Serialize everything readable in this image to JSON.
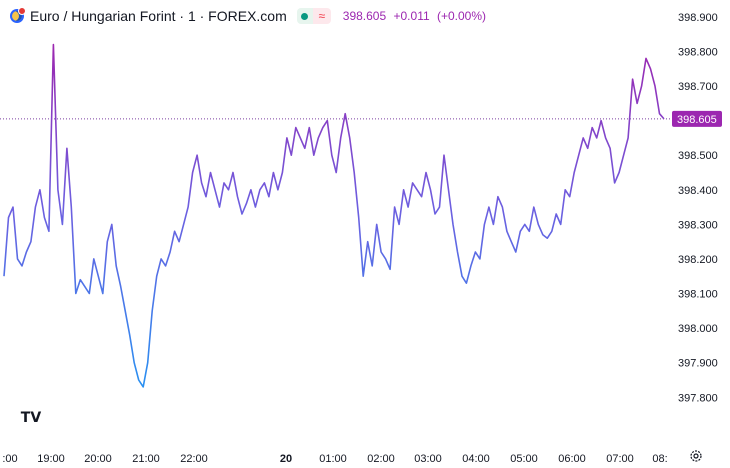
{
  "legend": {
    "title": "Euro / Hungarian Forint · 1 · FOREX.com",
    "last": "398.605",
    "change": "+0.011",
    "change_pct": "(+0.00%)",
    "icons": [
      "currency-pair-icon",
      "market-open-icon",
      "wave-icon"
    ]
  },
  "colors": {
    "line_start": "#2196f3",
    "line_end": "#9c27b0",
    "price_label_bg": "#9c27b0",
    "axis_text": "#131722"
  },
  "footer": {
    "logo_text": "TV",
    "settings_icon": "gear-icon"
  },
  "chart_data": {
    "type": "line",
    "title": "Euro / Hungarian Forint · 1 · FOREX.com",
    "xlabel": "",
    "ylabel": "",
    "ylim": [
      397.74,
      398.92
    ],
    "x_ticks": [
      ":00",
      "19:00",
      "20:00",
      "21:00",
      "22:00",
      "20",
      "01:00",
      "02:00",
      "03:00",
      "04:00",
      "05:00",
      "06:00",
      "07:00",
      "08:"
    ],
    "y_ticks": [
      "398.900",
      "398.800",
      "398.700",
      "398.600",
      "398.500",
      "398.400",
      "398.300",
      "398.200",
      "398.100",
      "398.000",
      "397.900",
      "397.800"
    ],
    "last_price": 398.605,
    "last_price_label": "398.605",
    "series": [
      {
        "values": [
          398.15,
          398.32,
          398.35,
          398.2,
          398.18,
          398.22,
          398.25,
          398.35,
          398.4,
          398.32,
          398.28,
          398.82,
          398.4,
          398.3,
          398.52,
          398.35,
          398.1,
          398.14,
          398.12,
          398.1,
          398.2,
          398.15,
          398.1,
          398.25,
          398.3,
          398.18,
          398.12,
          398.05,
          397.98,
          397.9,
          397.85,
          397.83,
          397.9,
          398.05,
          398.15,
          398.2,
          398.18,
          398.22,
          398.28,
          398.25,
          398.3,
          398.35,
          398.45,
          398.5,
          398.42,
          398.38,
          398.45,
          398.4,
          398.35,
          398.42,
          398.4,
          398.45,
          398.38,
          398.33,
          398.36,
          398.4,
          398.35,
          398.4,
          398.42,
          398.38,
          398.45,
          398.4,
          398.45,
          398.55,
          398.5,
          398.58,
          398.55,
          398.52,
          398.58,
          398.5,
          398.55,
          398.58,
          398.6,
          398.5,
          398.45,
          398.55,
          398.62,
          398.55,
          398.45,
          398.32,
          398.15,
          398.25,
          398.18,
          398.3,
          398.22,
          398.2,
          398.17,
          398.35,
          398.3,
          398.4,
          398.35,
          398.42,
          398.4,
          398.38,
          398.45,
          398.4,
          398.33,
          398.35,
          398.5,
          398.4,
          398.3,
          398.22,
          398.15,
          398.13,
          398.18,
          398.22,
          398.2,
          398.3,
          398.35,
          398.3,
          398.38,
          398.35,
          398.28,
          398.25,
          398.22,
          398.28,
          398.3,
          398.28,
          398.35,
          398.3,
          398.27,
          398.26,
          398.28,
          398.33,
          398.3,
          398.4,
          398.38,
          398.45,
          398.5,
          398.55,
          398.52,
          398.58,
          398.55,
          398.6,
          398.55,
          398.52,
          398.42,
          398.45,
          398.5,
          398.55,
          398.72,
          398.65,
          398.7,
          398.78,
          398.75,
          398.7,
          398.62,
          398.605
        ]
      }
    ]
  }
}
